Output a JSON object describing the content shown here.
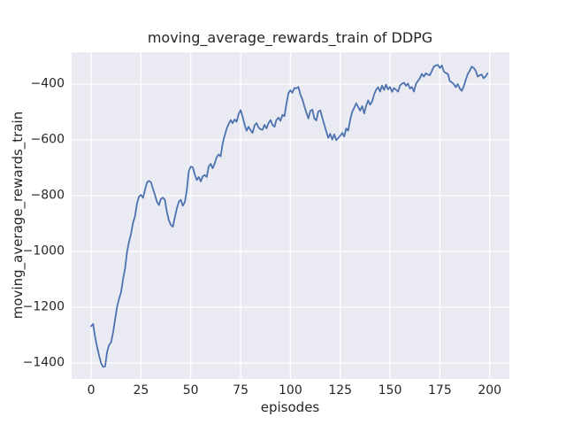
{
  "figure": {
    "title": "moving_average_rewards_train of DDPG",
    "xlabel": "episodes",
    "ylabel": "moving_average_rewards_train"
  },
  "chart_data": {
    "type": "line",
    "title": "moving_average_rewards_train of DDPG",
    "xlabel": "episodes",
    "ylabel": "moving_average_rewards_train",
    "legend": null,
    "grid": true,
    "x_ticks": [
      0,
      25,
      50,
      75,
      100,
      125,
      150,
      175,
      200
    ],
    "x_tick_labels": [
      "0",
      "25",
      "50",
      "75",
      "100",
      "125",
      "150",
      "175",
      "200"
    ],
    "y_ticks": [
      -400,
      -600,
      -800,
      -1000,
      -1200,
      -1400
    ],
    "y_tick_labels": [
      "−400",
      "−600",
      "−800",
      "−1000",
      "−1200",
      "−1400"
    ],
    "xlim": [
      -9.8,
      209.9
    ],
    "ylim": [
      -1457.1,
      -285.7
    ],
    "colors": {
      "line": "#4c72b0",
      "plot_bg": "#eaeaf2",
      "grid": "#ffffff",
      "text": "#262626",
      "figure_bg": "#ffffff"
    },
    "x_start": 0,
    "x_step": 1,
    "series": [
      {
        "name": "moving_average_rewards_train",
        "y": [
          -1268,
          -1260,
          -1308,
          -1342,
          -1374,
          -1400,
          -1414,
          -1412,
          -1360,
          -1335,
          -1326,
          -1290,
          -1245,
          -1199,
          -1170,
          -1146,
          -1100,
          -1062,
          -1003,
          -965,
          -938,
          -897,
          -875,
          -828,
          -803,
          -797,
          -808,
          -780,
          -753,
          -747,
          -752,
          -775,
          -797,
          -822,
          -834,
          -812,
          -807,
          -815,
          -858,
          -888,
          -905,
          -911,
          -878,
          -845,
          -822,
          -815,
          -836,
          -823,
          -780,
          -712,
          -696,
          -698,
          -723,
          -744,
          -733,
          -749,
          -730,
          -726,
          -733,
          -695,
          -686,
          -702,
          -684,
          -662,
          -652,
          -659,
          -612,
          -585,
          -560,
          -543,
          -529,
          -540,
          -527,
          -535,
          -508,
          -493,
          -517,
          -545,
          -567,
          -553,
          -565,
          -575,
          -548,
          -540,
          -555,
          -562,
          -564,
          -546,
          -559,
          -540,
          -529,
          -546,
          -553,
          -528,
          -520,
          -532,
          -510,
          -515,
          -470,
          -433,
          -422,
          -431,
          -414,
          -415,
          -410,
          -438,
          -454,
          -480,
          -502,
          -523,
          -496,
          -491,
          -523,
          -530,
          -498,
          -494,
          -520,
          -545,
          -569,
          -593,
          -578,
          -599,
          -580,
          -601,
          -593,
          -585,
          -575,
          -588,
          -559,
          -567,
          -527,
          -500,
          -485,
          -469,
          -482,
          -495,
          -479,
          -505,
          -478,
          -458,
          -474,
          -462,
          -437,
          -420,
          -411,
          -427,
          -405,
          -421,
          -402,
          -419,
          -410,
          -428,
          -414,
          -420,
          -427,
          -405,
          -398,
          -395,
          -406,
          -398,
          -416,
          -410,
          -427,
          -400,
          -388,
          -379,
          -363,
          -373,
          -361,
          -366,
          -368,
          -352,
          -337,
          -333,
          -331,
          -342,
          -333,
          -355,
          -360,
          -363,
          -389,
          -394,
          -400,
          -411,
          -400,
          -416,
          -424,
          -408,
          -384,
          -364,
          -352,
          -337,
          -342,
          -352,
          -373,
          -368,
          -366,
          -379,
          -372,
          -361
        ]
      }
    ]
  }
}
